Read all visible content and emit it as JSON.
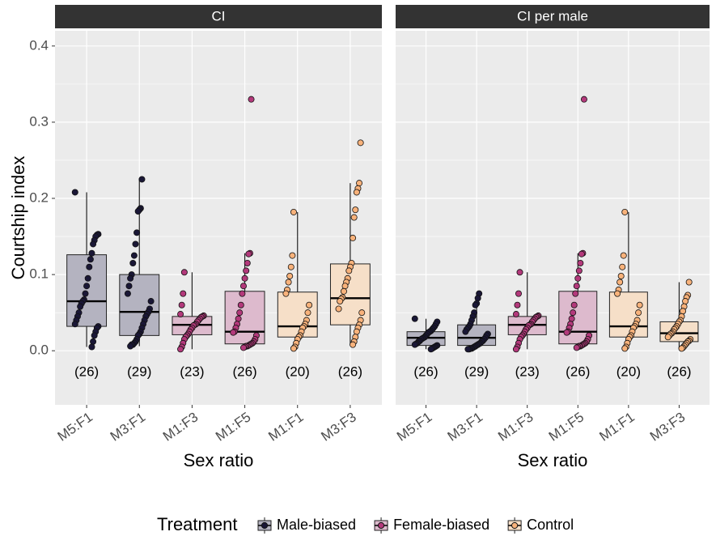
{
  "chart_data": {
    "type": "box",
    "y_label": "Courtship index",
    "legend_title": "Treatment",
    "ylim": [
      -0.071,
      0.42
    ],
    "yticks": [
      {
        "value": 0,
        "label": "0.0"
      },
      0.1,
      0.2,
      0.3,
      0.4
    ],
    "grid": true,
    "legend_position": "bottom",
    "series": [
      {
        "name": "Male-biased",
        "color": "#1a1736",
        "fill": "#b4b3c0"
      },
      {
        "name": "Female-biased",
        "color": "#b3397b",
        "fill": "#ddbacd"
      },
      {
        "name": "Control",
        "color": "#f8b27b",
        "fill": "#f6dfc8"
      }
    ],
    "panels": [
      {
        "title": "CI",
        "x_label": "Sex ratio",
        "groups": [
          {
            "category": "M5:F1",
            "series": "Male-biased",
            "count_label": "(26)",
            "whisker_low": 0.005,
            "q1": 0.032,
            "median": 0.065,
            "q3": 0.126,
            "whisker_high": 0.208,
            "points": [
              0.208,
              0.153,
              0.152,
              0.15,
              0.145,
              0.14,
              0.128,
              0.12,
              0.11,
              0.095,
              0.085,
              0.075,
              0.067,
              0.065,
              0.062,
              0.058,
              0.05,
              0.045,
              0.04,
              0.035,
              0.032,
              0.03,
              0.025,
              0.02,
              0.012,
              0.005
            ]
          },
          {
            "category": "M3:F1",
            "series": "Male-biased",
            "count_label": "(29)",
            "whisker_low": 0.006,
            "q1": 0.02,
            "median": 0.051,
            "q3": 0.1,
            "whisker_high": 0.225,
            "points": [
              0.225,
              0.187,
              0.185,
              0.183,
              0.155,
              0.14,
              0.125,
              0.115,
              0.1,
              0.095,
              0.085,
              0.075,
              0.065,
              0.055,
              0.051,
              0.048,
              0.045,
              0.04,
              0.035,
              0.03,
              0.025,
              0.022,
              0.02,
              0.015,
              0.012,
              0.01,
              0.008,
              0.008,
              0.006
            ]
          },
          {
            "category": "M1:F3",
            "series": "Female-biased",
            "count_label": "(23)",
            "whisker_low": 0.002,
            "q1": 0.021,
            "median": 0.034,
            "q3": 0.045,
            "whisker_high": 0.103,
            "points": [
              0.103,
              0.075,
              0.06,
              0.048,
              0.046,
              0.045,
              0.044,
              0.042,
              0.04,
              0.038,
              0.035,
              0.034,
              0.033,
              0.03,
              0.028,
              0.025,
              0.022,
              0.02,
              0.018,
              0.015,
              0.01,
              0.005,
              0.002
            ]
          },
          {
            "category": "M1:F5",
            "series": "Female-biased",
            "count_label": "(26)",
            "whisker_low": 0.004,
            "q1": 0.009,
            "median": 0.025,
            "q3": 0.078,
            "whisker_high": 0.128,
            "points": [
              0.33,
              0.128,
              0.127,
              0.115,
              0.105,
              0.095,
              0.085,
              0.075,
              0.06,
              0.05,
              0.042,
              0.035,
              0.03,
              0.025,
              0.024,
              0.02,
              0.015,
              0.012,
              0.01,
              0.009,
              0.008,
              0.007,
              0.006,
              0.006,
              0.005,
              0.004
            ]
          },
          {
            "category": "M1:F1",
            "series": "Control",
            "count_label": "(20)",
            "whisker_low": 0.003,
            "q1": 0.018,
            "median": 0.032,
            "q3": 0.077,
            "whisker_high": 0.182,
            "points": [
              0.182,
              0.125,
              0.11,
              0.098,
              0.09,
              0.08,
              0.075,
              0.06,
              0.05,
              0.04,
              0.035,
              0.032,
              0.03,
              0.025,
              0.02,
              0.018,
              0.015,
              0.01,
              0.005,
              0.003
            ]
          },
          {
            "category": "M3:F3",
            "series": "Control",
            "count_label": "(26)",
            "whisker_low": 0.008,
            "q1": 0.034,
            "median": 0.069,
            "q3": 0.114,
            "whisker_high": 0.22,
            "points": [
              0.273,
              0.22,
              0.213,
              0.208,
              0.185,
              0.175,
              0.148,
              0.115,
              0.11,
              0.105,
              0.095,
              0.09,
              0.085,
              0.078,
              0.07,
              0.068,
              0.065,
              0.055,
              0.05,
              0.04,
              0.034,
              0.03,
              0.025,
              0.018,
              0.012,
              0.008
            ]
          }
        ]
      },
      {
        "title": "CI per male",
        "x_label": "Sex ratio",
        "groups": [
          {
            "category": "M5:F1",
            "series": "Male-biased",
            "count_label": "(26)",
            "whisker_low": 0.002,
            "q1": 0.007,
            "median": 0.017,
            "q3": 0.025,
            "whisker_high": 0.042,
            "points": [
              0.042,
              0.038,
              0.035,
              0.032,
              0.03,
              0.028,
              0.026,
              0.025,
              0.024,
              0.022,
              0.02,
              0.018,
              0.017,
              0.016,
              0.015,
              0.013,
              0.012,
              0.01,
              0.009,
              0.008,
              0.007,
              0.006,
              0.005,
              0.004,
              0.003,
              0.002
            ]
          },
          {
            "category": "M3:F1",
            "series": "Male-biased",
            "count_label": "(29)",
            "whisker_low": 0.002,
            "q1": 0.007,
            "median": 0.017,
            "q3": 0.034,
            "whisker_high": 0.075,
            "points": [
              0.075,
              0.069,
              0.062,
              0.06,
              0.05,
              0.045,
              0.04,
              0.035,
              0.032,
              0.03,
              0.028,
              0.025,
              0.022,
              0.02,
              0.017,
              0.015,
              0.013,
              0.012,
              0.01,
              0.009,
              0.008,
              0.007,
              0.006,
              0.005,
              0.004,
              0.003,
              0.003,
              0.002,
              0.002
            ]
          },
          {
            "category": "M1:F3",
            "series": "Female-biased",
            "count_label": "(23)",
            "whisker_low": 0.002,
            "q1": 0.021,
            "median": 0.034,
            "q3": 0.045,
            "whisker_high": 0.103,
            "points": [
              0.103,
              0.075,
              0.06,
              0.048,
              0.046,
              0.045,
              0.044,
              0.042,
              0.04,
              0.038,
              0.035,
              0.034,
              0.033,
              0.03,
              0.028,
              0.025,
              0.022,
              0.02,
              0.018,
              0.015,
              0.01,
              0.005,
              0.002
            ]
          },
          {
            "category": "M1:F5",
            "series": "Female-biased",
            "count_label": "(26)",
            "whisker_low": 0.004,
            "q1": 0.009,
            "median": 0.025,
            "q3": 0.078,
            "whisker_high": 0.128,
            "points": [
              0.33,
              0.128,
              0.127,
              0.115,
              0.105,
              0.095,
              0.085,
              0.075,
              0.06,
              0.05,
              0.042,
              0.035,
              0.03,
              0.025,
              0.024,
              0.02,
              0.015,
              0.012,
              0.01,
              0.009,
              0.008,
              0.007,
              0.006,
              0.006,
              0.005,
              0.004
            ]
          },
          {
            "category": "M1:F1",
            "series": "Control",
            "count_label": "(20)",
            "whisker_low": 0.003,
            "q1": 0.018,
            "median": 0.032,
            "q3": 0.077,
            "whisker_high": 0.182,
            "points": [
              0.182,
              0.125,
              0.11,
              0.098,
              0.09,
              0.08,
              0.075,
              0.06,
              0.05,
              0.04,
              0.035,
              0.032,
              0.03,
              0.025,
              0.02,
              0.018,
              0.015,
              0.01,
              0.005,
              0.003
            ]
          },
          {
            "category": "M3:F3",
            "series": "Control",
            "count_label": "(26)",
            "whisker_low": 0.003,
            "q1": 0.012,
            "median": 0.023,
            "q3": 0.038,
            "whisker_high": 0.09,
            "points": [
              0.09,
              0.073,
              0.07,
              0.065,
              0.058,
              0.052,
              0.045,
              0.04,
              0.038,
              0.035,
              0.032,
              0.03,
              0.028,
              0.025,
              0.023,
              0.022,
              0.02,
              0.018,
              0.015,
              0.013,
              0.012,
              0.01,
              0.008,
              0.006,
              0.004,
              0.003
            ]
          }
        ]
      }
    ]
  }
}
